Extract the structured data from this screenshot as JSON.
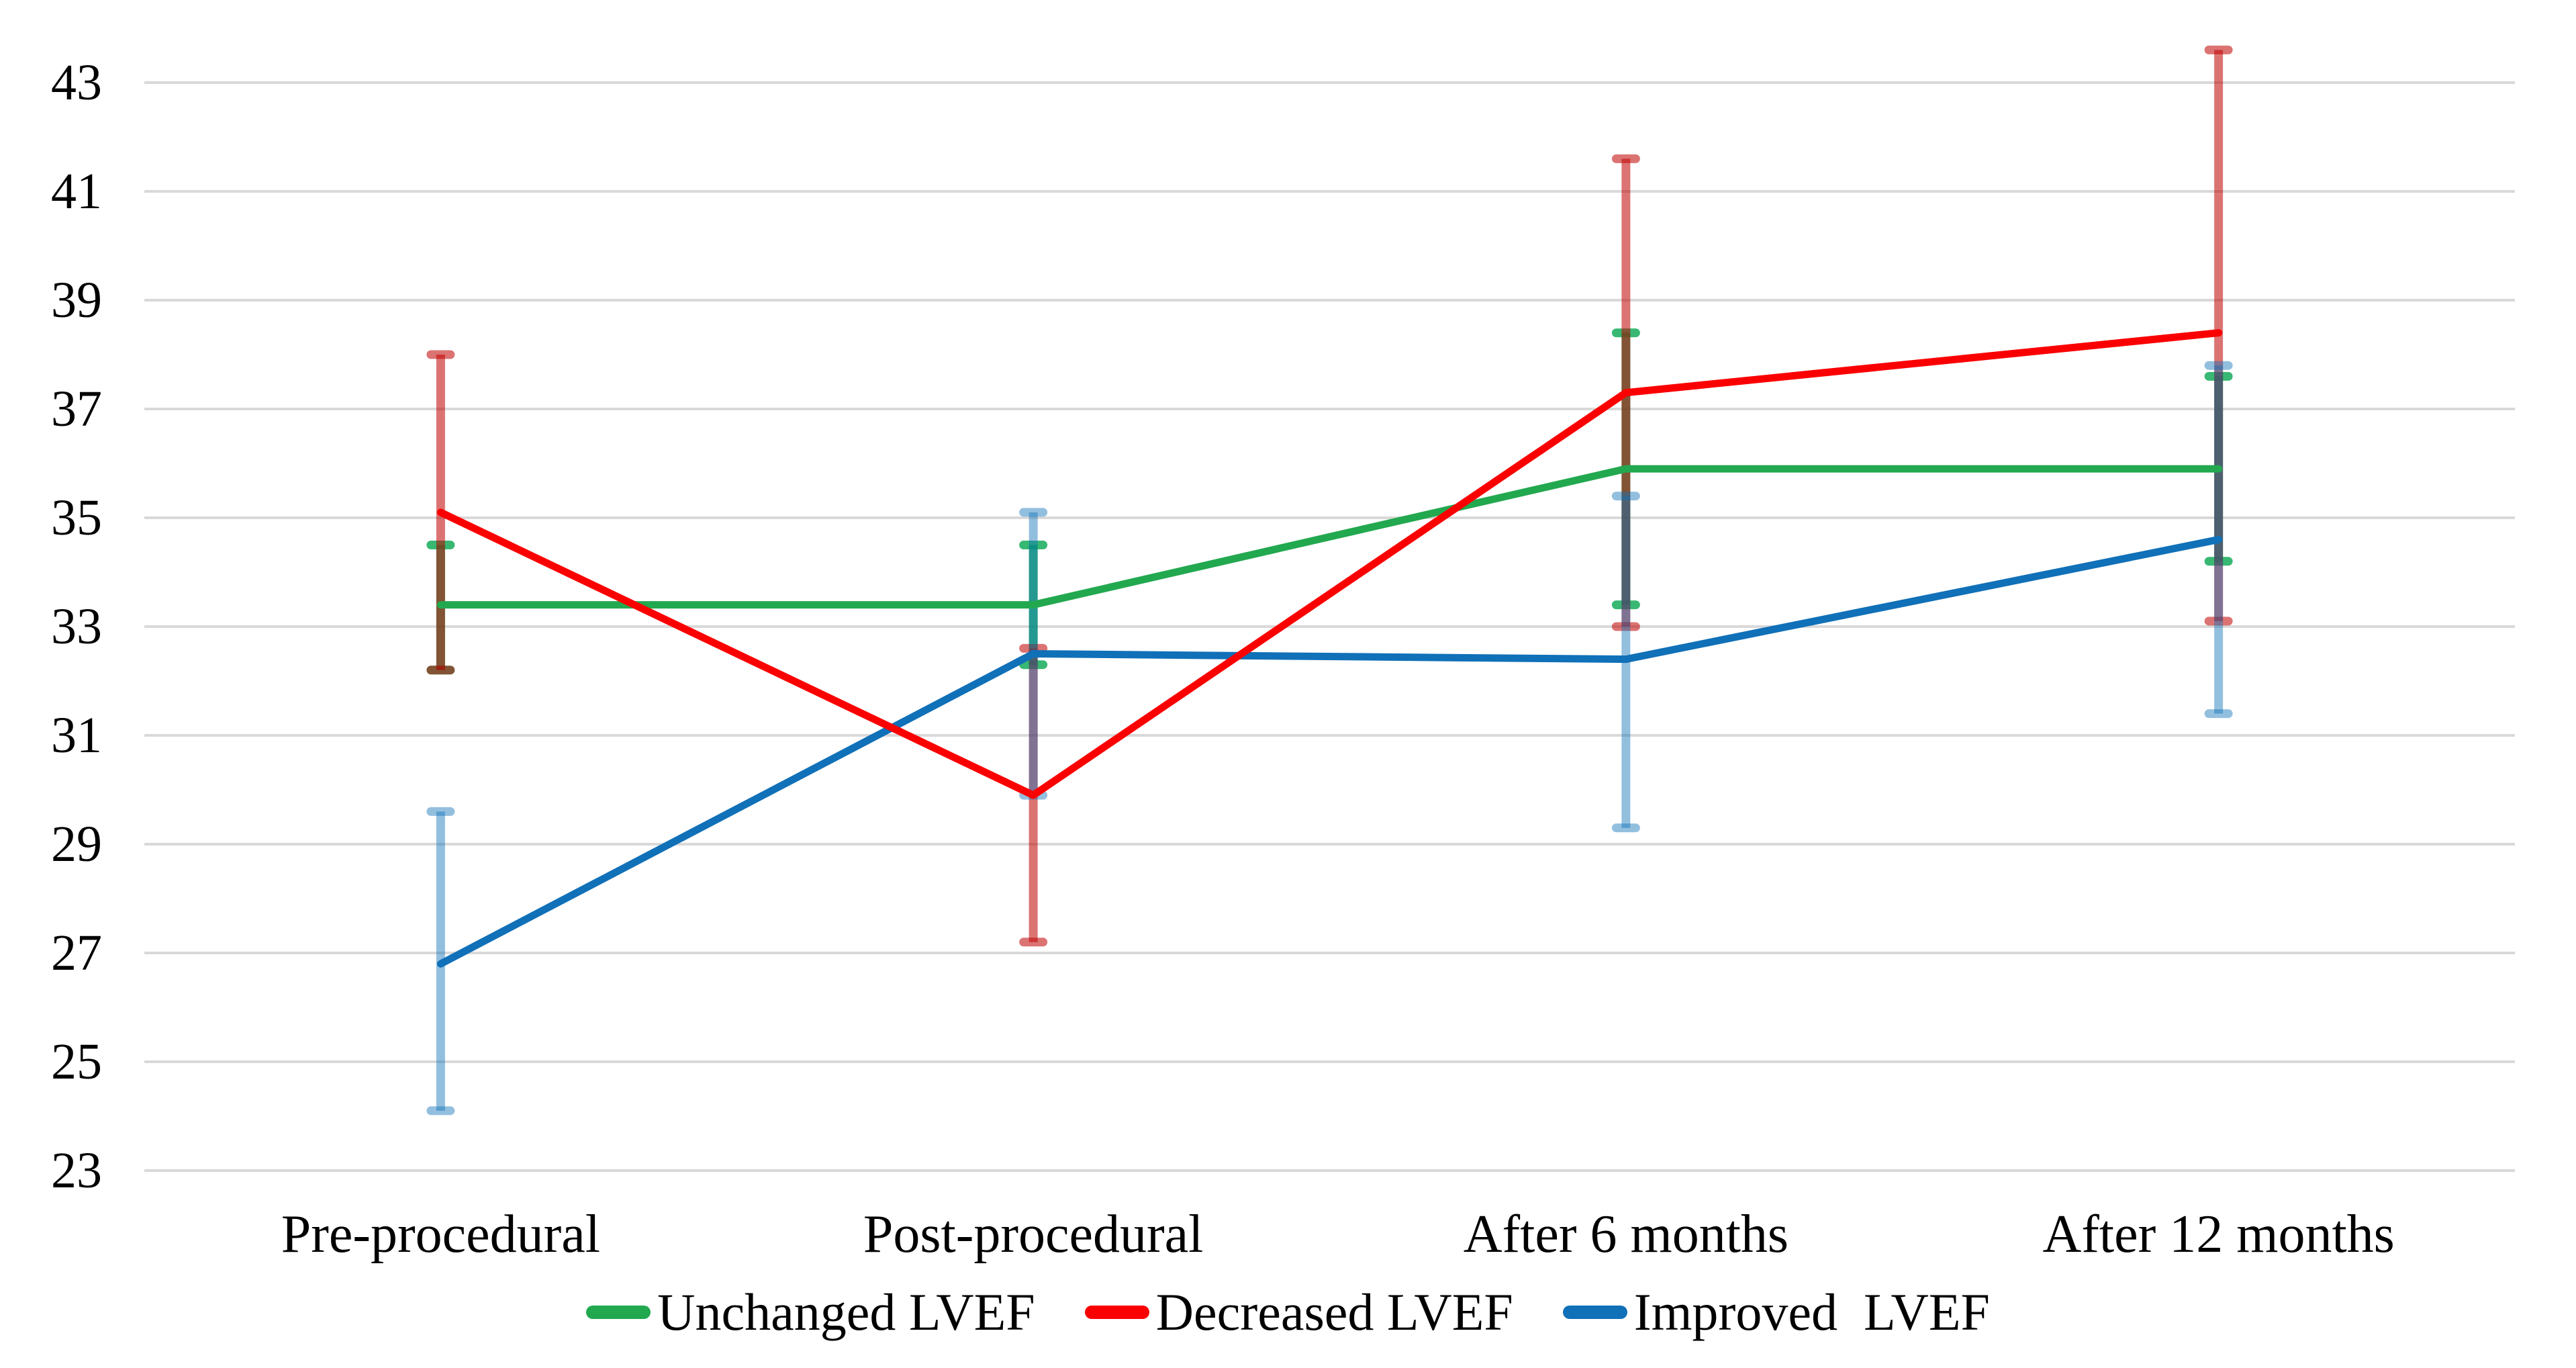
{
  "chart_data": {
    "type": "line",
    "title": "",
    "xlabel": "",
    "ylabel": "",
    "categories": [
      "Pre-procedural",
      "Post-procedural",
      "After 6 months",
      "After 12 months"
    ],
    "y_axis": {
      "min": 23,
      "max": 43,
      "step": 2,
      "ticks": [
        43,
        41,
        39,
        37,
        35,
        33,
        31,
        29,
        27,
        25,
        23
      ]
    },
    "grid": true,
    "gridline_color": "#D9D9D9",
    "background": "#FFFFFF",
    "series": [
      {
        "name": "Unchanged LVEF",
        "color": "#22A84F",
        "error_color": "rgba(0,164,76,0.78)",
        "values": [
          33.4,
          33.4,
          35.9,
          35.9
        ],
        "err_lo": [
          32.2,
          32.3,
          33.4,
          34.2
        ],
        "err_hi": [
          34.5,
          34.5,
          38.4,
          37.6
        ]
      },
      {
        "name": "Decreased LVEF",
        "color": "#FA0000",
        "error_color": "rgba(192,0,0,0.55)",
        "values": [
          35.1,
          29.9,
          37.3,
          38.4
        ],
        "err_lo": [
          32.2,
          27.2,
          33.0,
          33.1
        ],
        "err_hi": [
          38.0,
          32.6,
          41.6,
          43.6
        ]
      },
      {
        "name": "Improved  LVEF",
        "color": "#1070B8",
        "error_color": "rgba(16,112,184,0.45)",
        "values": [
          26.8,
          32.5,
          32.4,
          34.6
        ],
        "err_lo": [
          24.1,
          29.9,
          29.3,
          31.4
        ],
        "err_hi": [
          29.6,
          35.1,
          35.4,
          37.8
        ]
      }
    ],
    "legend": {
      "position": "bottom"
    }
  }
}
